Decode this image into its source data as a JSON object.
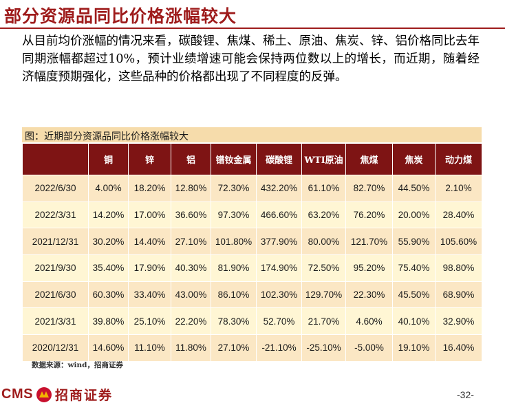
{
  "title": "部分资源品同比价格涨幅较大",
  "body_text": "从目前均价涨幅的情况来看，碳酸锂、焦煤、稀土、原油、焦炭、锌、铝价格同比去年同期涨幅都超过10%，预计业绩增速可能会保持两位数以上的增长，而近期，随着经济幅度预期强化，这些品种的价格都出现了不同程度的反弹。",
  "caption": "图：近期部分资源品同比价格涨幅较大",
  "table": {
    "headers": [
      "",
      "铜",
      "锌",
      "铝",
      "镨钕金属",
      "碳酸锂",
      "WTI原油",
      "焦煤",
      "焦炭",
      "动力煤"
    ],
    "rows": [
      [
        "2022/6/30",
        "4.00%",
        "18.20%",
        "12.80%",
        "72.30%",
        "432.20%",
        "61.10%",
        "82.70%",
        "44.50%",
        "2.10%"
      ],
      [
        "2022/3/31",
        "14.20%",
        "17.00%",
        "36.60%",
        "97.30%",
        "466.60%",
        "63.20%",
        "76.20%",
        "20.00%",
        "28.40%"
      ],
      [
        "2021/12/31",
        "30.20%",
        "14.40%",
        "27.10%",
        "101.80%",
        "377.90%",
        "80.00%",
        "121.70%",
        "55.90%",
        "105.60%"
      ],
      [
        "2021/9/30",
        "35.40%",
        "17.90%",
        "40.30%",
        "81.90%",
        "174.90%",
        "72.50%",
        "95.20%",
        "75.40%",
        "98.80%"
      ],
      [
        "2021/6/30",
        "60.30%",
        "33.40%",
        "43.00%",
        "86.10%",
        "102.30%",
        "129.70%",
        "22.30%",
        "45.50%",
        "68.90%"
      ],
      [
        "2021/3/31",
        "39.80%",
        "25.10%",
        "22.20%",
        "78.30%",
        "52.70%",
        "21.70%",
        "4.60%",
        "40.10%",
        "32.90%"
      ],
      [
        "2020/12/31",
        "14.60%",
        "11.10%",
        "11.80%",
        "27.10%",
        "-21.10%",
        "-25.10%",
        "-5.00%",
        "19.10%",
        "16.40%"
      ]
    ]
  },
  "source": "数据来源：wind，招商证券",
  "logo": {
    "latin": "CMS",
    "chinese": "招商证券"
  },
  "page_number": "-32-",
  "colors": {
    "title": "#9e1b1b",
    "header_bg": "#7e1414",
    "row_odd": "#fbe7c4",
    "row_even": "#fff6d4",
    "caption_bg": "#f6dcab"
  }
}
